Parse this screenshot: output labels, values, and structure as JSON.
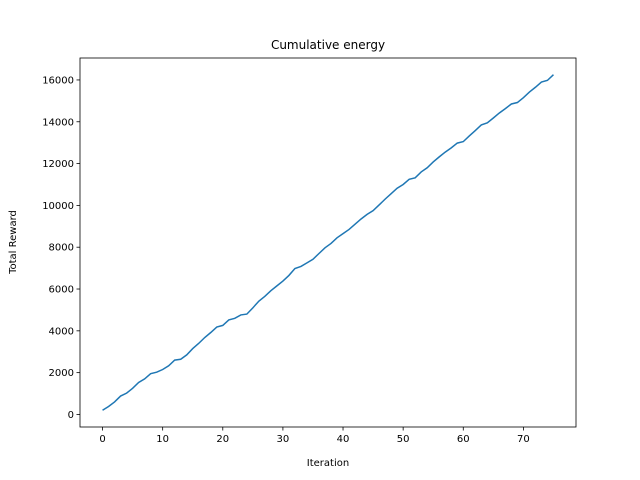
{
  "chart_data": {
    "type": "line",
    "title": "Cumulative energy",
    "x_label": "Iteration",
    "y_label": "Total Reward",
    "x": [
      0,
      1,
      2,
      3,
      4,
      5,
      6,
      7,
      8,
      9,
      10,
      11,
      12,
      13,
      14,
      15,
      16,
      17,
      18,
      19,
      20,
      21,
      22,
      23,
      24,
      25,
      26,
      27,
      28,
      29,
      30,
      31,
      32,
      33,
      34,
      35,
      36,
      37,
      38,
      39,
      40,
      41,
      42,
      43,
      44,
      45,
      46,
      47,
      48,
      49,
      50,
      51,
      52,
      53,
      54,
      55,
      56,
      57,
      58,
      59,
      60,
      61,
      62,
      63,
      64,
      65,
      66,
      67,
      68,
      69,
      70,
      71,
      72,
      73,
      74,
      75
    ],
    "series": [
      {
        "name": "Total Reward",
        "color": "#1f77b4",
        "values": [
          200,
          380,
          600,
          880,
          1020,
          1250,
          1530,
          1700,
          1950,
          2020,
          2150,
          2330,
          2600,
          2640,
          2850,
          3150,
          3400,
          3680,
          3920,
          4180,
          4260,
          4520,
          4600,
          4760,
          4800,
          5100,
          5420,
          5650,
          5920,
          6150,
          6380,
          6650,
          6980,
          7080,
          7250,
          7420,
          7700,
          7970,
          8180,
          8450,
          8650,
          8850,
          9100,
          9350,
          9570,
          9750,
          10020,
          10300,
          10560,
          10820,
          11000,
          11250,
          11320,
          11600,
          11800,
          12080,
          12320,
          12550,
          12750,
          12980,
          13050,
          13320,
          13580,
          13850,
          13950,
          14180,
          14420,
          14630,
          14850,
          14920,
          15150,
          15420,
          15650,
          15900,
          15980,
          16250
        ]
      }
    ],
    "xlim": [
      -3.75,
      78.75
    ],
    "ylim": [
      -600,
      17050
    ],
    "xticks": [
      0,
      10,
      20,
      30,
      40,
      50,
      60,
      70
    ],
    "yticks": [
      0,
      2000,
      4000,
      6000,
      8000,
      10000,
      12000,
      14000,
      16000
    ]
  }
}
